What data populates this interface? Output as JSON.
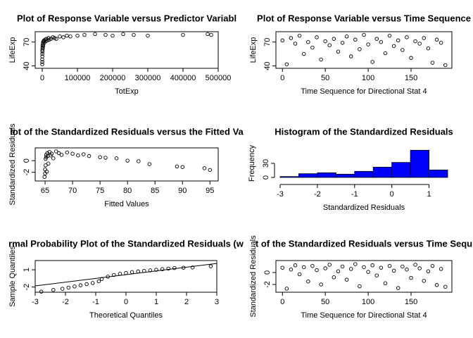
{
  "chart_data": [
    {
      "type": "scatter",
      "title": "Plot of Response Variable versus Predictor Variabl",
      "xlabel": "TotExp",
      "ylabel": "LifeExp",
      "x": [
        20,
        50,
        100,
        200,
        300,
        400,
        600,
        800,
        1000,
        1500,
        2000,
        2500,
        3000,
        4000,
        5000,
        6000,
        8000,
        10000,
        12000,
        15000,
        18000,
        20000,
        25000,
        30000,
        35000,
        40000,
        50000,
        60000,
        70000,
        80000,
        100000,
        120000,
        150000,
        180000,
        200000,
        230000,
        260000,
        300000,
        400000,
        470000,
        480000
      ],
      "values": [
        42,
        48,
        45,
        55,
        52,
        60,
        58,
        63,
        66,
        62,
        68,
        70,
        65,
        71,
        72,
        69,
        73,
        71,
        74,
        72,
        75,
        73,
        74,
        76,
        75,
        74,
        77,
        76,
        78,
        77,
        78,
        79,
        80,
        79,
        78,
        80,
        79,
        78,
        79,
        80,
        79
      ],
      "xlim": [
        -20000,
        500000
      ],
      "ylim": [
        37,
        83
      ],
      "xticks": [
        0,
        100000,
        200000,
        300000,
        400000,
        500000
      ],
      "yticks": [
        40,
        70
      ]
    },
    {
      "type": "scatter",
      "title": "Plot of Response Variable versus Time Sequence",
      "xlabel": "Time Sequence for Directional Stat 4",
      "ylabel": "LifeExp",
      "x": [
        0,
        5,
        10,
        15,
        20,
        25,
        30,
        35,
        40,
        45,
        50,
        55,
        60,
        65,
        70,
        75,
        80,
        85,
        90,
        95,
        100,
        105,
        110,
        115,
        120,
        125,
        130,
        135,
        140,
        145,
        150,
        155,
        160,
        165,
        170,
        175,
        180,
        185,
        190
      ],
      "values": [
        72,
        42,
        75,
        68,
        78,
        55,
        70,
        63,
        76,
        48,
        71,
        66,
        74,
        58,
        69,
        77,
        52,
        73,
        61,
        79,
        67,
        45,
        74,
        70,
        56,
        78,
        65,
        72,
        60,
        76,
        50,
        71,
        68,
        75,
        62,
        44,
        73,
        69,
        41
      ],
      "xlim": [
        -7.6,
        197.6
      ],
      "ylim": [
        37,
        83
      ],
      "xticks": [
        0,
        50,
        100,
        150
      ],
      "yticks": [
        40,
        70
      ]
    },
    {
      "type": "scatter",
      "title": "lot of the Standardized Residuals versus the Fitted Va",
      "xlabel": "Fitted Values",
      "ylabel": "Standardized Residuals",
      "x": [
        64.9,
        65,
        65,
        65.1,
        65.1,
        65.2,
        65.2,
        65.3,
        65.4,
        65.5,
        65.6,
        65.8,
        66,
        66.2,
        66.5,
        67,
        67.5,
        68,
        69,
        70,
        71,
        72,
        73,
        75,
        76,
        78,
        80,
        82,
        84,
        89,
        90,
        94,
        95
      ],
      "values": [
        -2.8,
        -2.2,
        -1.5,
        -0.8,
        0.3,
        1.0,
        0.6,
        -1.9,
        1.3,
        0.8,
        -0.5,
        1.5,
        0.9,
        1.2,
        0.4,
        1.6,
        1.3,
        1.0,
        1.4,
        1.2,
        0.9,
        1.1,
        0.8,
        0.6,
        0.5,
        0.4,
        0.0,
        -0.1,
        -0.6,
        -1.0,
        -1.1,
        -1.3,
        -1.6
      ],
      "xlim": [
        63.2,
        96.5
      ],
      "ylim": [
        -3.5,
        2.2
      ],
      "xticks": [
        65,
        70,
        75,
        80,
        85,
        90,
        95
      ],
      "yticks": [
        -2,
        0
      ]
    },
    {
      "type": "histogram",
      "title": "Histogram of the Standardized Residuals",
      "xlabel": "Standardized Residuals",
      "ylabel": "Frequency",
      "bins": [
        -3,
        -2.5,
        -2,
        -1.5,
        -1,
        -0.5,
        0,
        0.5,
        1,
        1.5
      ],
      "values": [
        2,
        8,
        10,
        7,
        13,
        22,
        32,
        58,
        16
      ],
      "color": "#0000ff",
      "xlim": [
        -3,
        1.5
      ],
      "ylim": [
        0,
        60
      ],
      "xticks": [
        -3,
        -2,
        -1,
        0,
        1
      ],
      "yticks": [
        0,
        30
      ]
    },
    {
      "type": "scatter",
      "title": "rmal Probability Plot of the Standardized Residuals (w",
      "xlabel": "Theoretical Quantiles",
      "ylabel": "Sample Quantiles",
      "x": [
        -2.8,
        -2.4,
        -2.1,
        -1.9,
        -1.7,
        -1.5,
        -1.3,
        -1.1,
        -0.9,
        -0.8,
        -0.6,
        -0.4,
        -0.2,
        0,
        0.2,
        0.4,
        0.6,
        0.8,
        1.0,
        1.2,
        1.4,
        1.6,
        1.9,
        2.2,
        2.8
      ],
      "values": [
        -2.8,
        -2.5,
        -2.3,
        -2.1,
        -1.9,
        -1.7,
        -1.5,
        -1.3,
        -1.0,
        -0.6,
        -0.2,
        0.1,
        0.3,
        0.45,
        0.6,
        0.7,
        0.8,
        0.9,
        1.0,
        1.1,
        1.2,
        1.3,
        1.35,
        1.4,
        1.6
      ],
      "reference_line": {
        "slope": 0.65,
        "intercept": 0.15
      },
      "xlim": [
        -3,
        3
      ],
      "ylim": [
        -2.9,
        2.6
      ],
      "xticks": [
        -3,
        -2,
        -1,
        0,
        1,
        2,
        3
      ],
      "yticks": [
        -2,
        1
      ]
    },
    {
      "type": "scatter",
      "title": "t of the Standardized Residuals versus Time Sequ",
      "xlabel": "Time Sequence for Directional Stat 4",
      "ylabel": "Standardized Residuals",
      "x": [
        0,
        5,
        10,
        15,
        20,
        25,
        30,
        35,
        40,
        45,
        50,
        55,
        60,
        65,
        70,
        75,
        80,
        85,
        90,
        95,
        100,
        105,
        110,
        115,
        120,
        125,
        130,
        135,
        140,
        145,
        150,
        155,
        160,
        165,
        170,
        175,
        180,
        185,
        190
      ],
      "values": [
        0.8,
        -2.7,
        0.5,
        1.2,
        -0.3,
        0.9,
        -1.5,
        1.1,
        0.4,
        -2.0,
        0.7,
        1.3,
        -0.8,
        0.2,
        1.0,
        -1.2,
        0.6,
        1.4,
        -2.3,
        0.9,
        0.1,
        1.2,
        -0.5,
        0.8,
        -1.8,
        1.1,
        0.3,
        -2.6,
        1.0,
        0.5,
        -0.9,
        1.3,
        0.7,
        -1.4,
        0.2,
        1.1,
        -2.1,
        0.6,
        -2.4
      ],
      "xlim": [
        -7.6,
        197.6
      ],
      "ylim": [
        -3.3,
        2.0
      ],
      "xticks": [
        0,
        50,
        100,
        150
      ],
      "yticks": [
        -2,
        0
      ]
    }
  ]
}
